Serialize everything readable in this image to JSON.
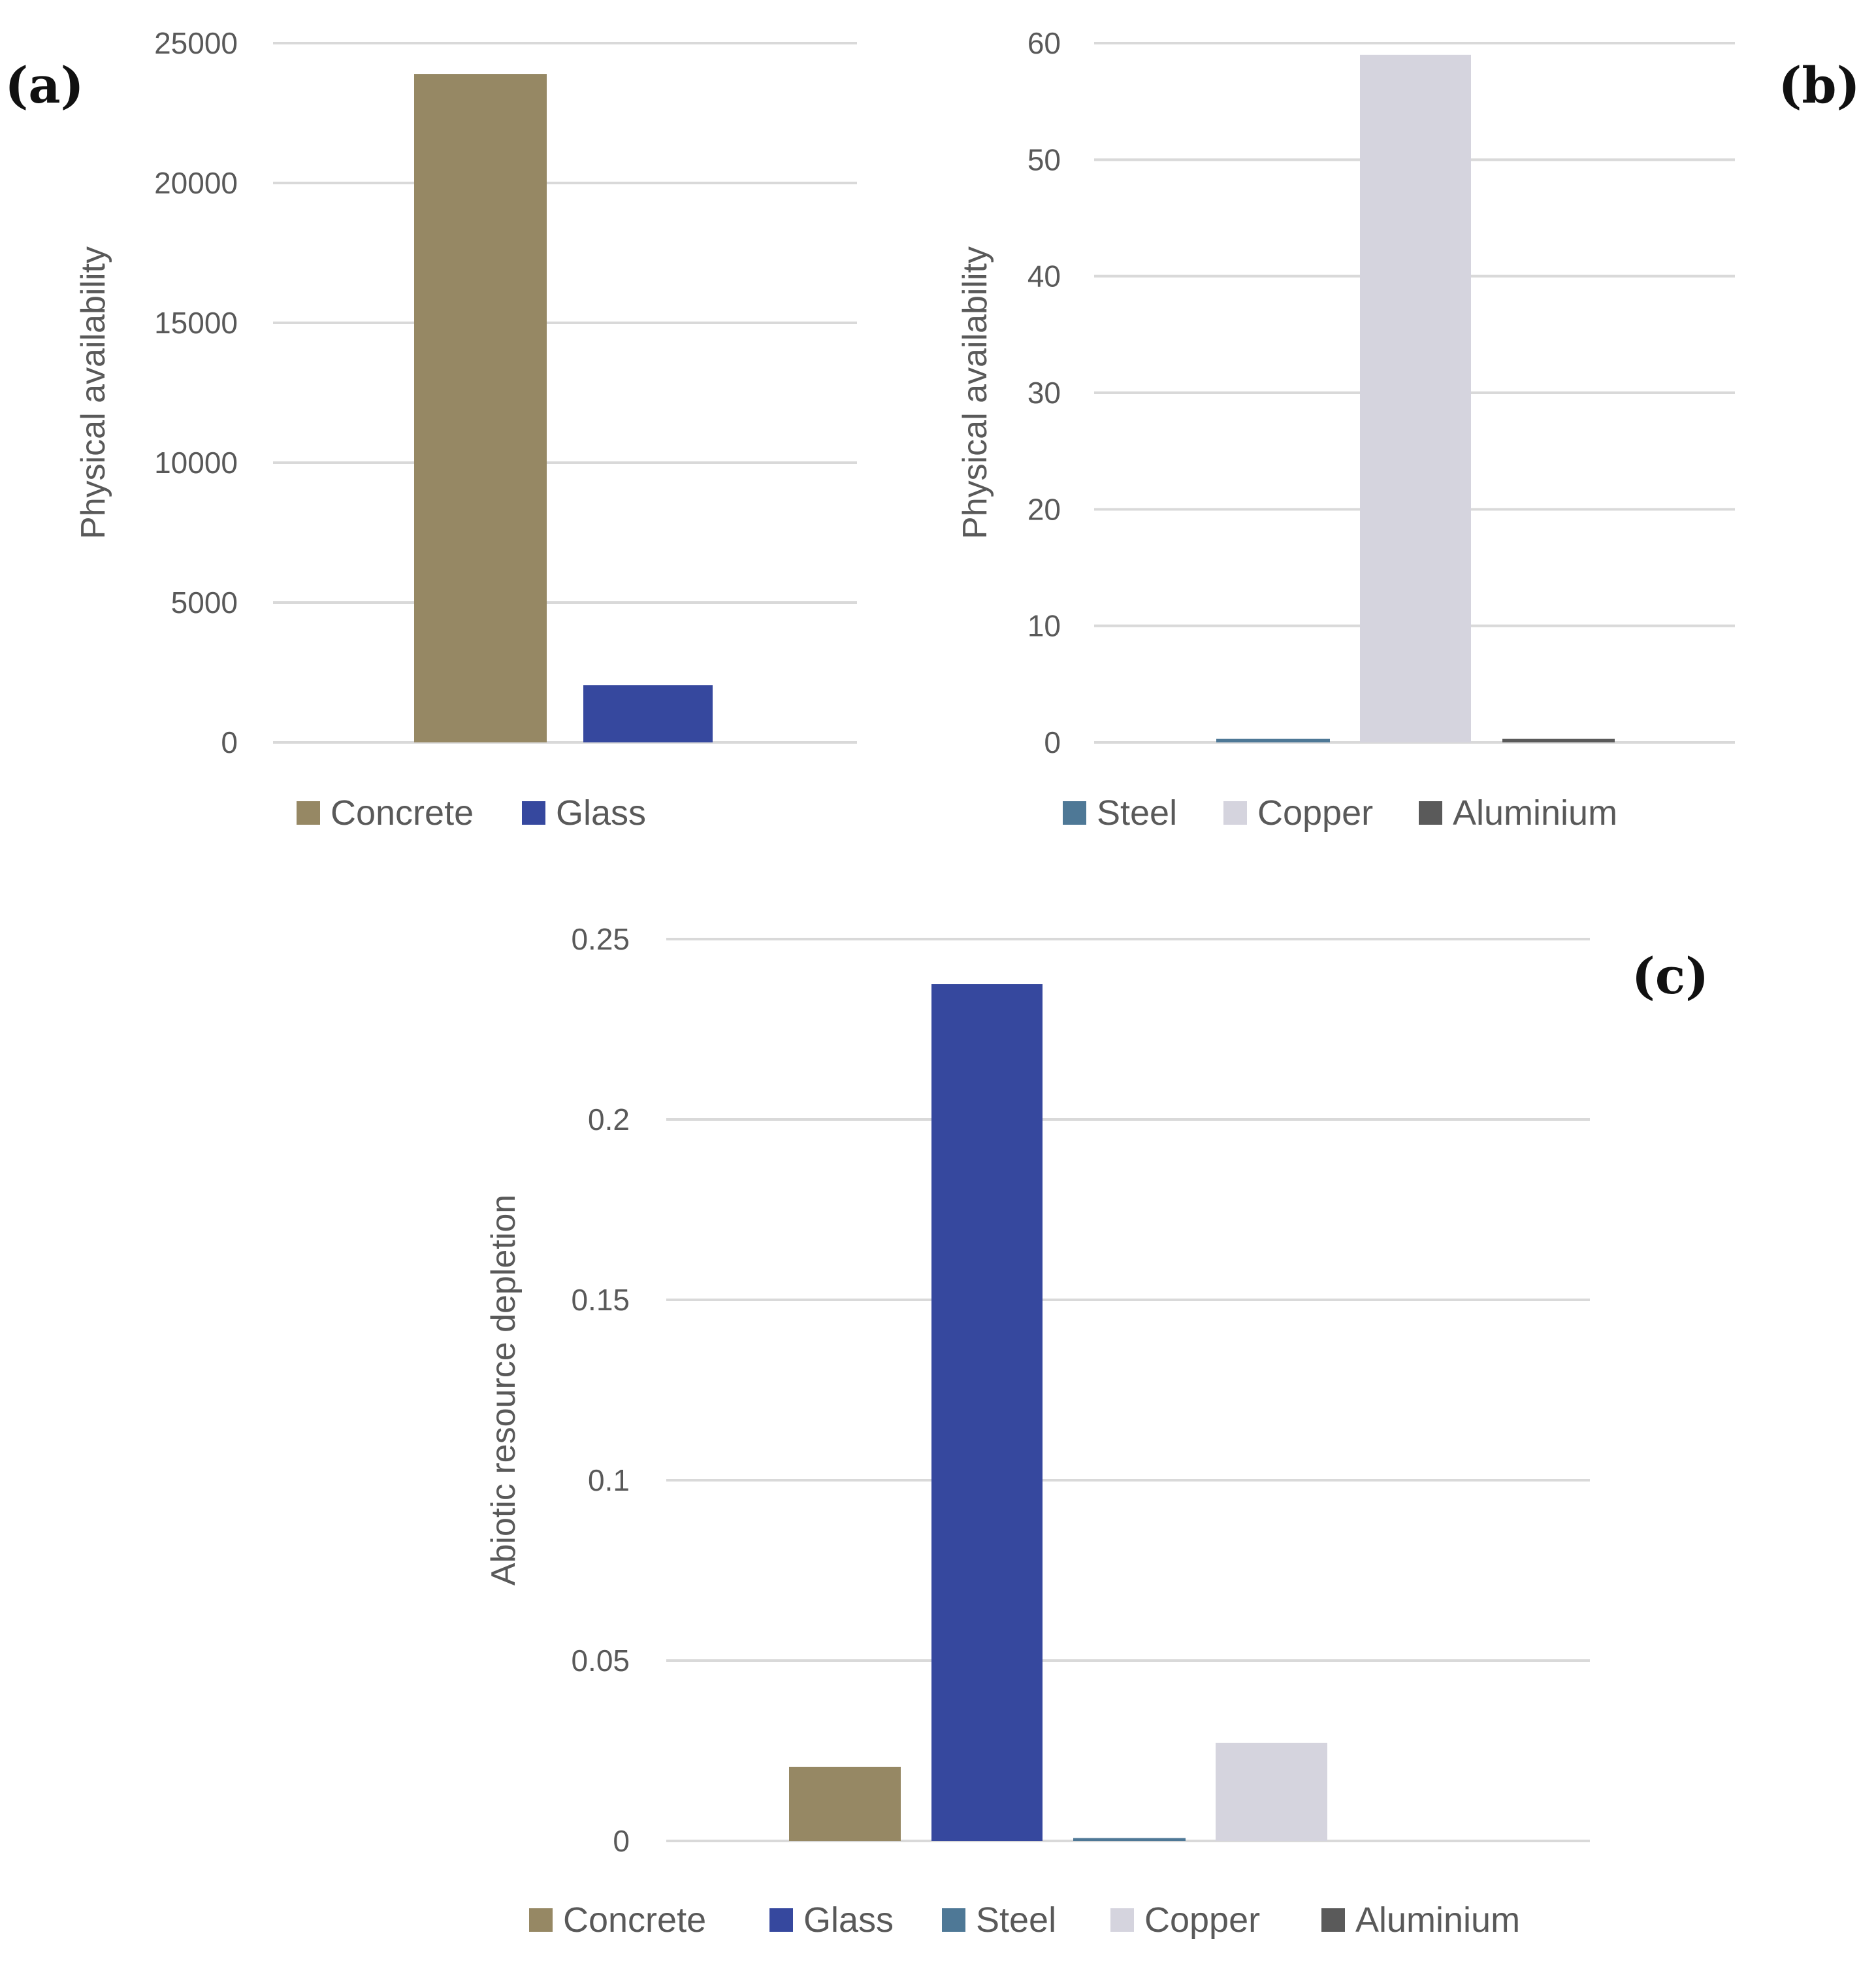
{
  "figure_panels": [
    {
      "letter": "(a)"
    },
    {
      "letter": "(b)"
    },
    {
      "letter": "(c)"
    }
  ],
  "chart_data": [
    {
      "panel": "(a)",
      "type": "bar",
      "title": "",
      "xlabel": "",
      "ylabel": "Physical availability",
      "ylim": [
        0,
        25000
      ],
      "yticks": [
        0,
        5000,
        10000,
        15000,
        20000,
        25000
      ],
      "ytick_labels": [
        "0",
        "5000",
        "10000",
        "15000",
        "20000",
        "25000"
      ],
      "legend_position": "bottom",
      "grid": true,
      "series": [
        {
          "name": "Concrete",
          "color": "#968864",
          "value": 23900
        },
        {
          "name": "Glass",
          "color": "#36489e",
          "value": 2050
        }
      ]
    },
    {
      "panel": "(b)",
      "type": "bar",
      "title": "",
      "xlabel": "",
      "ylabel": "Physical availability",
      "ylim": [
        0,
        60
      ],
      "yticks": [
        0,
        10,
        20,
        30,
        40,
        50,
        60
      ],
      "ytick_labels": [
        "0",
        "10",
        "20",
        "30",
        "40",
        "50",
        "60"
      ],
      "legend_position": "bottom",
      "grid": true,
      "series": [
        {
          "name": "Steel",
          "color": "#4e7896",
          "value": 0.3
        },
        {
          "name": "Copper",
          "color": "#d5d4de",
          "value": 59
        },
        {
          "name": "Aluminium",
          "color": "#5a5a5a",
          "value": 0.3
        }
      ]
    },
    {
      "panel": "(c)",
      "type": "bar",
      "title": "",
      "xlabel": "",
      "ylabel": "Abiotic resource depletion",
      "ylim": [
        0,
        0.25
      ],
      "yticks": [
        0,
        0.05,
        0.1,
        0.15,
        0.2,
        0.25
      ],
      "ytick_labels": [
        "0",
        "0.05",
        "0.1",
        "0.15",
        "0.2",
        "0.25"
      ],
      "legend_position": "bottom",
      "grid": true,
      "series": [
        {
          "name": "Concrete",
          "color": "#968864",
          "value": 0.0205
        },
        {
          "name": "Glass",
          "color": "#36489e",
          "value": 0.2375
        },
        {
          "name": "Steel",
          "color": "#4e7896",
          "value": 0.0008
        },
        {
          "name": "Copper",
          "color": "#d5d4de",
          "value": 0.0272
        },
        {
          "name": "Aluminium",
          "color": "#5a5a5a",
          "value": 0
        }
      ]
    }
  ]
}
